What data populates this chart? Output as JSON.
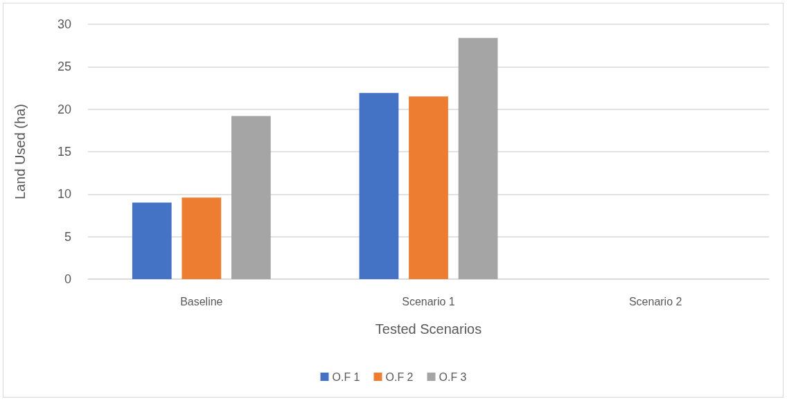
{
  "chart_data": {
    "type": "bar",
    "xlabel": "Tested Scenarios",
    "ylabel": "Land Used (ha)",
    "categories": [
      "Baseline",
      "Scenario 1",
      "Scenario 2"
    ],
    "series": [
      {
        "name": "O.F 1",
        "color": "#4472c4",
        "values": [
          9.0,
          21.9,
          null
        ]
      },
      {
        "name": "O.F 2",
        "color": "#ed7d31",
        "values": [
          9.6,
          21.5,
          null
        ]
      },
      {
        "name": "O.F 3",
        "color": "#a5a5a5",
        "values": [
          19.2,
          28.4,
          null
        ]
      }
    ],
    "ylim": [
      0,
      30
    ],
    "yticks": [
      0,
      5,
      10,
      15,
      20,
      25,
      30
    ],
    "grid": "y",
    "legend": "bottom"
  }
}
